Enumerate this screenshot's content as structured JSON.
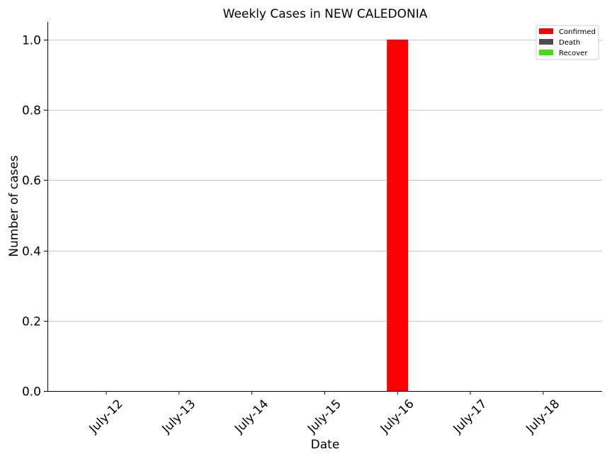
{
  "chart_data": {
    "type": "bar",
    "title": "Weekly Cases in NEW CALEDONIA",
    "xlabel": "Date",
    "ylabel": "Number of cases",
    "categories": [
      "July-12",
      "July-13",
      "July-14",
      "July-15",
      "July-16",
      "July-17",
      "July-18"
    ],
    "series": [
      {
        "name": "Confirmed",
        "color": "#ff0000",
        "values": [
          0,
          0,
          0,
          0,
          1,
          0,
          0
        ]
      },
      {
        "name": "Death",
        "color": "#4d4d4d",
        "values": [
          0,
          0,
          0,
          0,
          0,
          0,
          0
        ]
      },
      {
        "name": "Recover",
        "color": "#44dd11",
        "values": [
          0,
          0,
          0,
          0,
          0,
          0,
          0
        ]
      }
    ],
    "ylim": [
      0,
      1.05
    ],
    "yticks": [
      "0.0",
      "0.2",
      "0.4",
      "0.6",
      "0.8",
      "1.0"
    ],
    "grid": "horizontal",
    "legend": "top-right"
  }
}
